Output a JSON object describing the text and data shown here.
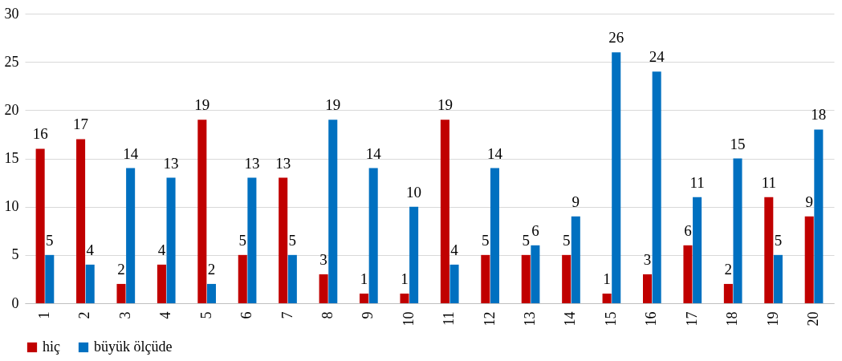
{
  "chart_data": {
    "type": "bar",
    "categories": [
      "1",
      "2",
      "3",
      "4",
      "5",
      "6",
      "7",
      "8",
      "9",
      "10",
      "11",
      "12",
      "13",
      "14",
      "15",
      "16",
      "17",
      "18",
      "19",
      "20"
    ],
    "series": [
      {
        "name": "hiç",
        "color": "#c00000",
        "values": [
          16,
          17,
          2,
          4,
          19,
          5,
          13,
          3,
          1,
          1,
          19,
          5,
          5,
          5,
          1,
          3,
          6,
          2,
          11,
          9
        ]
      },
      {
        "name": "büyük ölçüde",
        "color": "#0070c0",
        "values": [
          5,
          4,
          14,
          13,
          2,
          13,
          5,
          19,
          14,
          10,
          4,
          14,
          6,
          9,
          26,
          24,
          11,
          15,
          5,
          18
        ]
      }
    ],
    "ylim": [
      0,
      30
    ],
    "yticks": [
      0,
      5,
      10,
      15,
      20,
      25,
      30
    ],
    "grid": "y",
    "legend": "bottom",
    "data_labels": true
  }
}
